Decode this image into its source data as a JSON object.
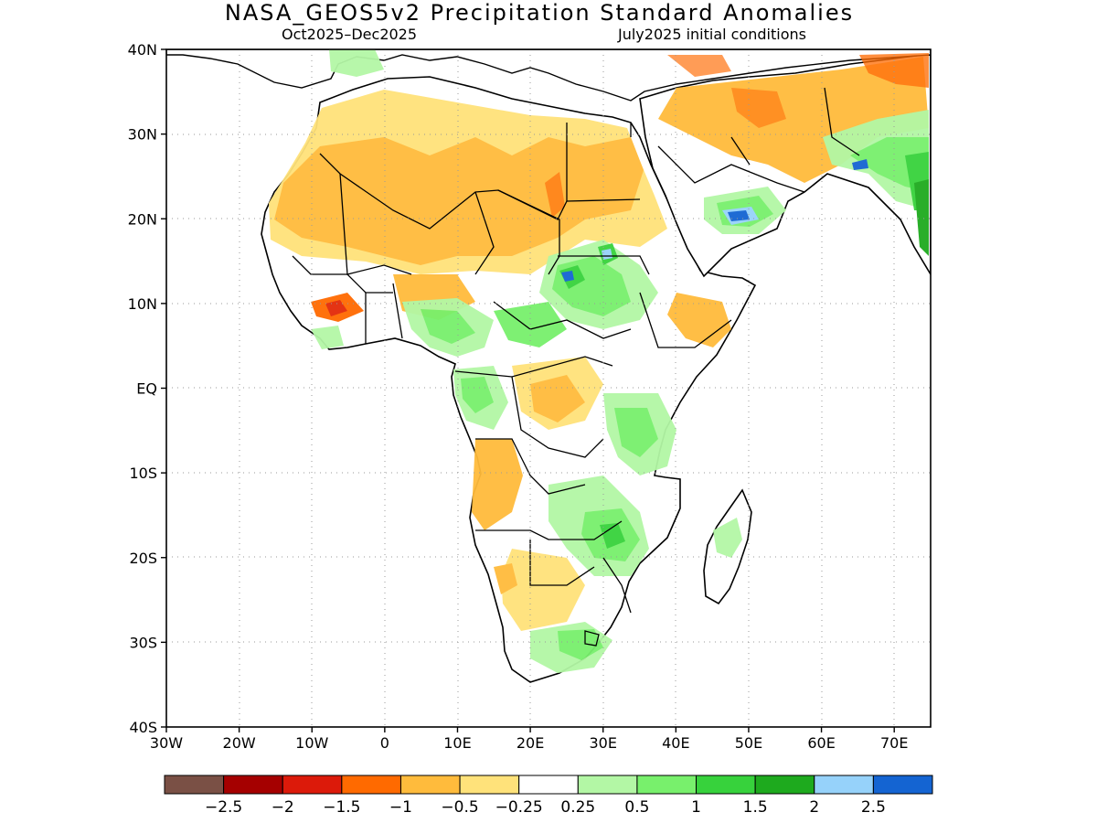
{
  "header": {
    "title": "NASA_GEOS5v2 Precipitation Standard Anomalies",
    "season": "Oct2025–Dec2025",
    "init": "July2025 initial conditions"
  },
  "axes": {
    "lat_labels": [
      "40N",
      "30N",
      "20N",
      "10N",
      "EQ",
      "10S",
      "20S",
      "30S",
      "40S"
    ],
    "lon_labels": [
      "30W",
      "20W",
      "10W",
      "0",
      "10E",
      "20E",
      "30E",
      "40E",
      "50E",
      "60E",
      "70E"
    ],
    "lon_range": [
      -30,
      75
    ],
    "lat_range": [
      -40,
      40
    ],
    "grid": "dotted"
  },
  "legend": {
    "colors": [
      "#7a5045",
      "#a50000",
      "#dc1a0a",
      "#ff6a00",
      "#ffbb3c",
      "#ffe27a",
      "#ffffff",
      "#b3f7a5",
      "#78f06c",
      "#37d23c",
      "#1eaa1e",
      "#96d2fa",
      "#1464d2"
    ],
    "labels": [
      "−2.5",
      "−2",
      "−1.5",
      "−1",
      "−0.5",
      "−0.25",
      "0.25",
      "0.5",
      "1",
      "1.5",
      "2",
      "2.5"
    ]
  },
  "palette": {
    "light_orange": "#ffe27a",
    "orange": "#ffbb3c",
    "dark_orange": "#ff6a00",
    "red": "#dc1a0a",
    "light_green": "#b3f7a5",
    "green": "#78f06c",
    "mid_green": "#37d23c",
    "light_blue": "#96d2fa",
    "blue": "#1464d2"
  }
}
